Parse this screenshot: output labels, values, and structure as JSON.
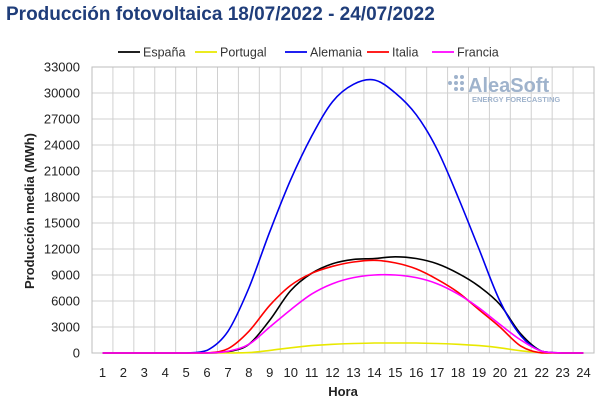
{
  "chart_data": {
    "type": "line",
    "title": "Producción fotovoltaica 18/07/2022 - 24/07/2022",
    "xlabel": "Hora",
    "ylabel": "Producción media (MWh)",
    "x": [
      1,
      2,
      3,
      4,
      5,
      6,
      7,
      8,
      9,
      10,
      11,
      12,
      13,
      14,
      15,
      16,
      17,
      18,
      19,
      20,
      21,
      22,
      23,
      24
    ],
    "x_tick_labels": [
      "1",
      "2",
      "3",
      "4",
      "5",
      "6",
      "7",
      "8",
      "9",
      "10",
      "11",
      "12",
      "13",
      "14",
      "15",
      "16",
      "17",
      "18",
      "19",
      "20",
      "21",
      "22",
      "23",
      "24"
    ],
    "ylim": [
      0,
      33000
    ],
    "y_ticks": [
      0,
      3000,
      6000,
      9000,
      12000,
      15000,
      18000,
      21000,
      24000,
      27000,
      30000,
      33000
    ],
    "y_tick_labels": [
      "0",
      "3000",
      "6000",
      "9000",
      "12000",
      "15000",
      "18000",
      "21000",
      "24000",
      "27000",
      "30000",
      "33000"
    ],
    "grid": true,
    "legend_position": "top",
    "series": [
      {
        "name": "España",
        "color": "#000000",
        "values": [
          0,
          0,
          0,
          0,
          0,
          0,
          150,
          1000,
          3800,
          7200,
          9200,
          10300,
          10800,
          10900,
          11100,
          10900,
          10300,
          9200,
          7700,
          5600,
          2200,
          200,
          0,
          0
        ]
      },
      {
        "name": "Portugal",
        "color": "#e8e800",
        "values": [
          0,
          0,
          0,
          0,
          0,
          0,
          0,
          50,
          300,
          600,
          850,
          1000,
          1100,
          1150,
          1150,
          1150,
          1100,
          1000,
          850,
          600,
          250,
          50,
          0,
          0
        ]
      },
      {
        "name": "Alemania",
        "color": "#0000ee",
        "values": [
          0,
          0,
          0,
          0,
          0,
          300,
          2500,
          7500,
          14000,
          20000,
          25000,
          29000,
          31000,
          31500,
          30000,
          27500,
          23500,
          18000,
          12000,
          6000,
          2000,
          200,
          0,
          0
        ]
      },
      {
        "name": "Italia",
        "color": "#ff0000",
        "values": [
          0,
          0,
          0,
          0,
          0,
          0,
          500,
          2500,
          5500,
          7800,
          9200,
          10000,
          10500,
          10700,
          10400,
          9700,
          8500,
          7000,
          5000,
          3000,
          800,
          0,
          0,
          0
        ]
      },
      {
        "name": "Francia",
        "color": "#ff00ff",
        "values": [
          0,
          0,
          0,
          0,
          0,
          0,
          200,
          1000,
          3000,
          5000,
          6800,
          8000,
          8700,
          9000,
          9000,
          8700,
          8000,
          6800,
          5200,
          3300,
          1500,
          200,
          0,
          0
        ]
      }
    ]
  },
  "logo": {
    "name": "AleaSoft",
    "tagline": "ENERGY FORECASTING"
  }
}
